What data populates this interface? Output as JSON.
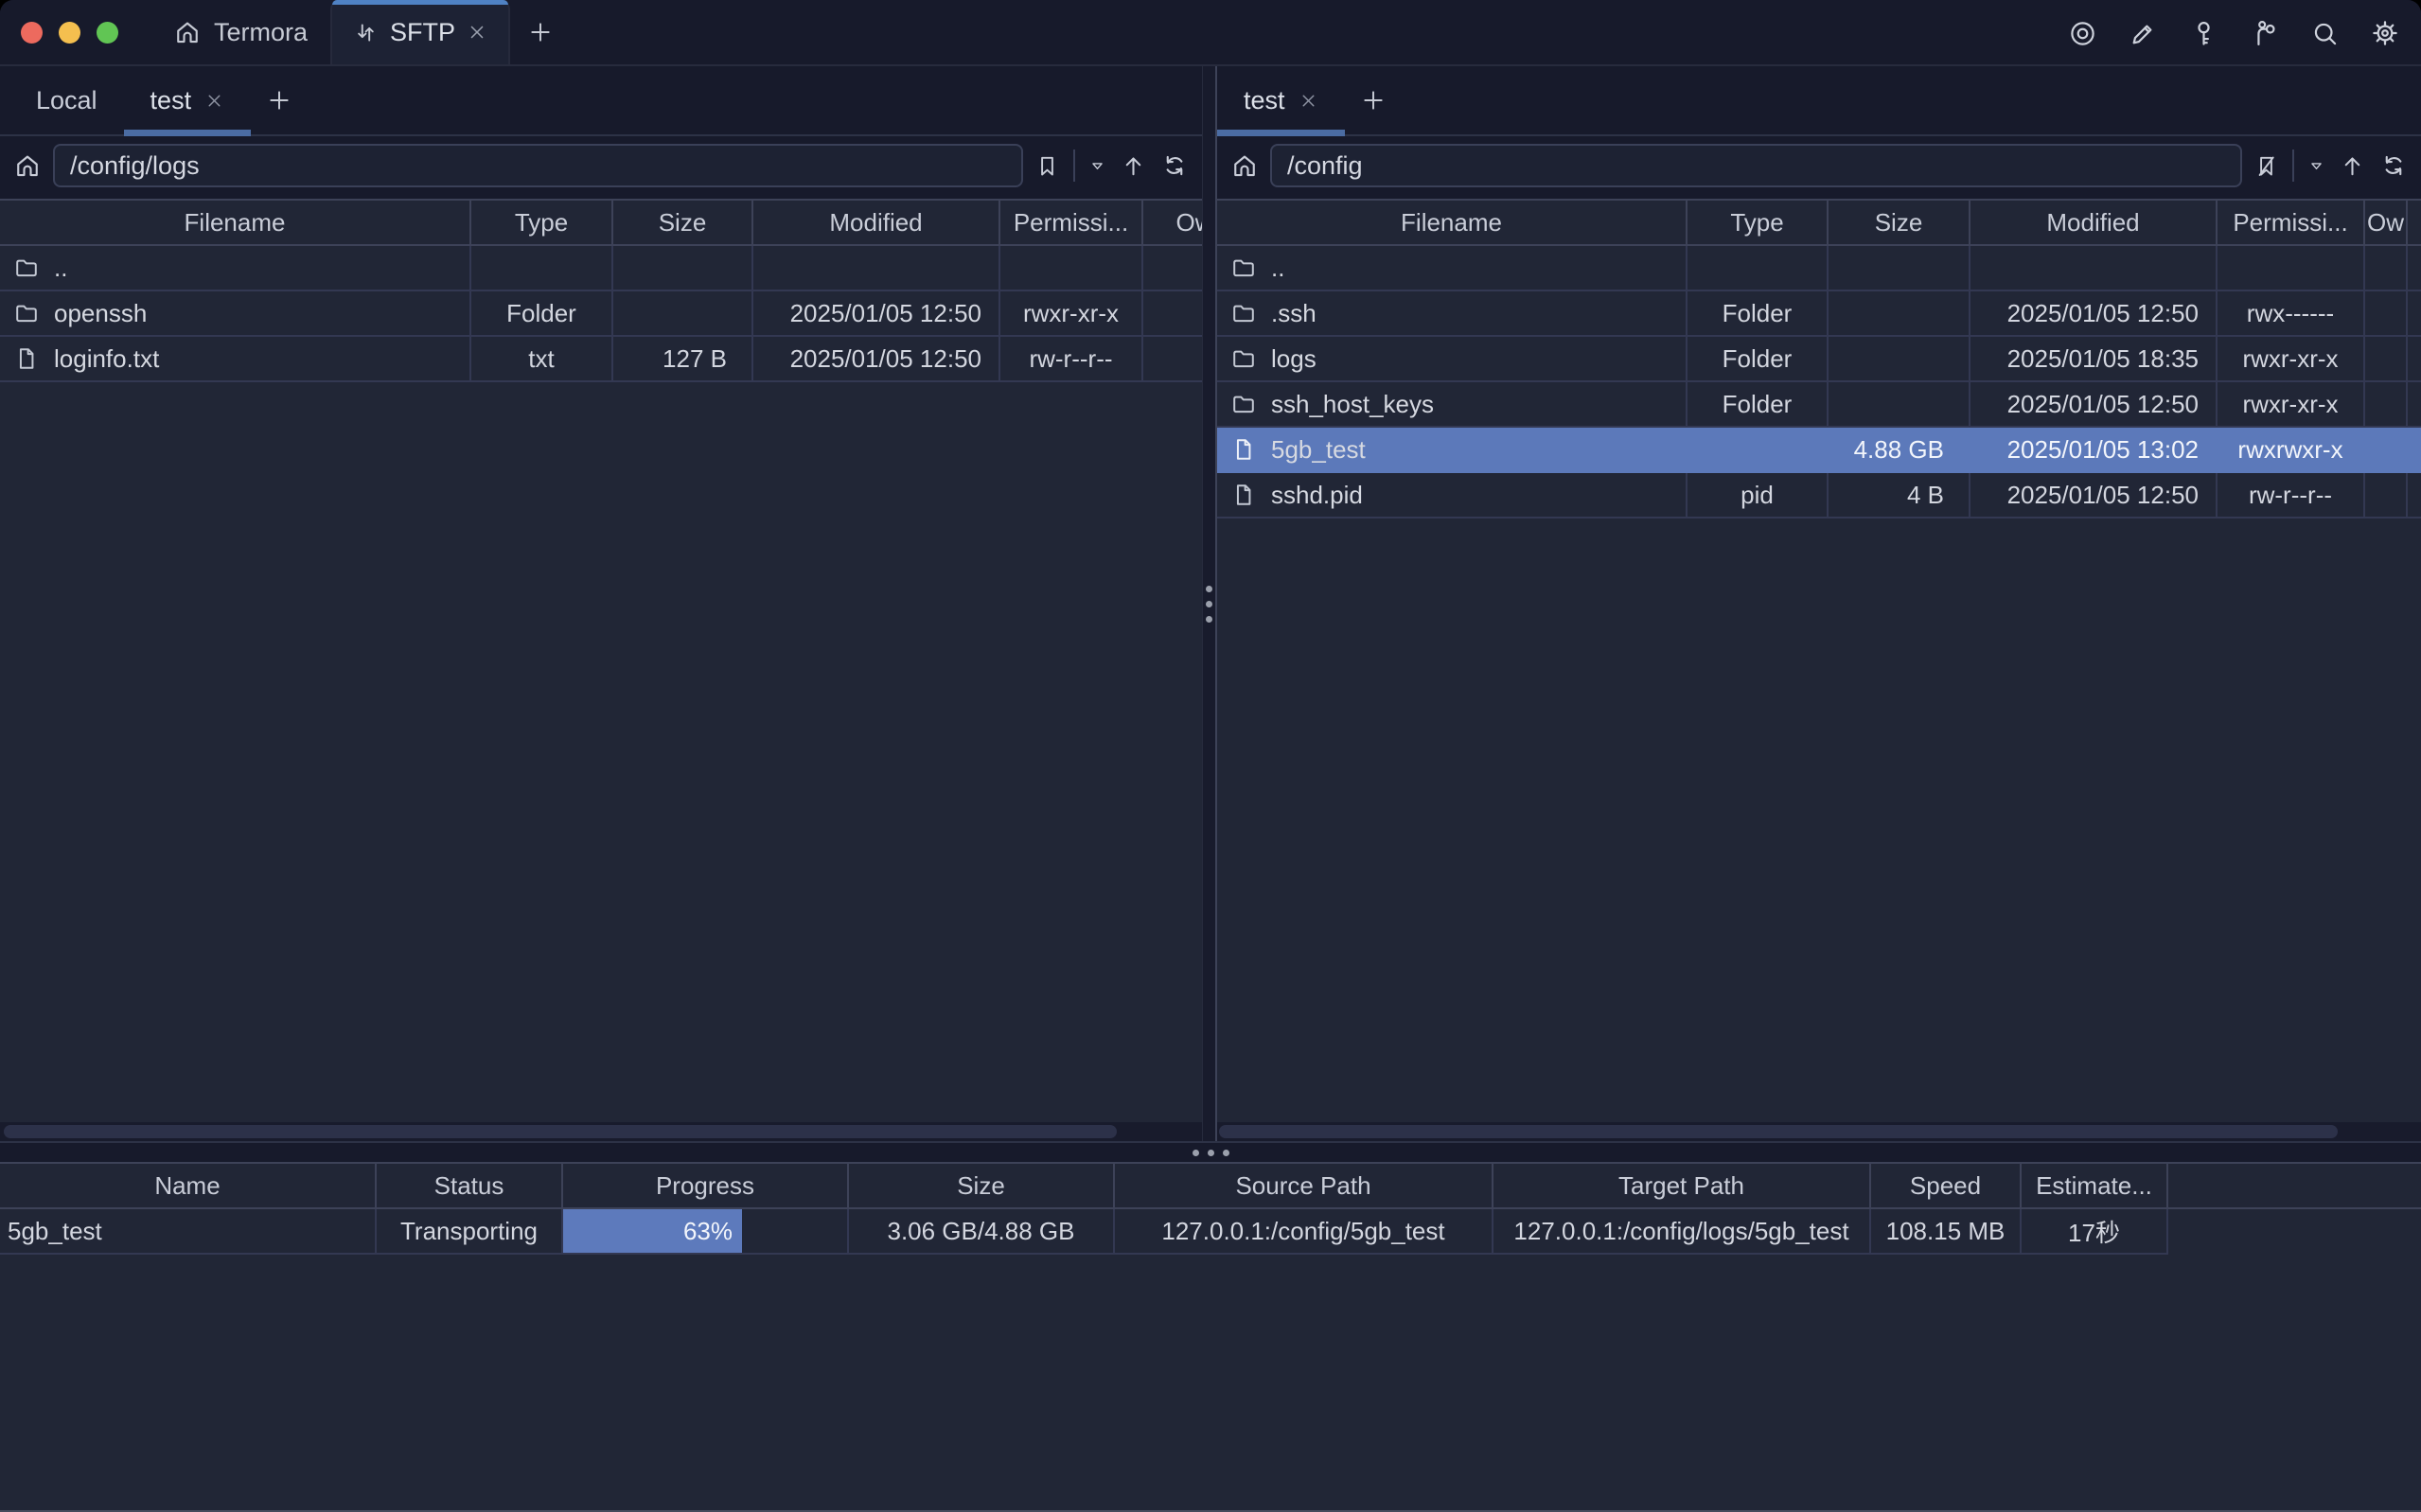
{
  "titlebar": {
    "app_tab_label": "Termora",
    "sftp_tab_label": "SFTP",
    "action_icons": [
      "record",
      "edit",
      "key",
      "keychain-branch",
      "search",
      "settings"
    ]
  },
  "colors": {
    "accent_top": "#4f82c4",
    "tab_underline": "#4b6ca3",
    "selection_blue": "#5c79ba",
    "progress_blue": "#5d7abc"
  },
  "left_pane": {
    "tabs": [
      {
        "label": "Local"
      },
      {
        "label": "test"
      }
    ],
    "active_tab": "test",
    "path": "/config/logs",
    "columns": [
      "Filename",
      "Type",
      "Size",
      "Modified",
      "Permissi...",
      "Ow"
    ],
    "rows": [
      {
        "name": "..",
        "icon": "folder",
        "type": "",
        "size": "",
        "modified": "",
        "permissions": ""
      },
      {
        "name": "openssh",
        "icon": "folder",
        "type": "Folder",
        "size": "",
        "modified": "2025/01/05 12:50",
        "permissions": "rwxr-xr-x"
      },
      {
        "name": "loginfo.txt",
        "icon": "file",
        "type": "txt",
        "size": "127 B",
        "modified": "2025/01/05 12:50",
        "permissions": "rw-r--r--"
      }
    ]
  },
  "right_pane": {
    "tabs": [
      {
        "label": "test"
      }
    ],
    "active_tab": "test",
    "path": "/config",
    "columns": [
      "Filename",
      "Type",
      "Size",
      "Modified",
      "Permissi...",
      "Ow"
    ],
    "rows": [
      {
        "name": "..",
        "icon": "folder",
        "type": "",
        "size": "",
        "modified": "",
        "permissions": ""
      },
      {
        "name": ".ssh",
        "icon": "folder",
        "type": "Folder",
        "size": "",
        "modified": "2025/01/05 12:50",
        "permissions": "rwx------"
      },
      {
        "name": "logs",
        "icon": "folder",
        "type": "Folder",
        "size": "",
        "modified": "2025/01/05 18:35",
        "permissions": "rwxr-xr-x"
      },
      {
        "name": "ssh_host_keys",
        "icon": "folder",
        "type": "Folder",
        "size": "",
        "modified": "2025/01/05 12:50",
        "permissions": "rwxr-xr-x"
      },
      {
        "name": "5gb_test",
        "icon": "file",
        "type": "",
        "size": "4.88 GB",
        "modified": "2025/01/05 13:02",
        "permissions": "rwxrwxr-x",
        "selected": true
      },
      {
        "name": "sshd.pid",
        "icon": "file",
        "type": "pid",
        "size": "4 B",
        "modified": "2025/01/05 12:50",
        "permissions": "rw-r--r--"
      }
    ]
  },
  "transfers": {
    "columns": [
      "Name",
      "Status",
      "Progress",
      "Size",
      "Source Path",
      "Target Path",
      "Speed",
      "Estimate..."
    ],
    "rows": [
      {
        "name": "5gb_test",
        "status": "Transporting",
        "progress_label": "63%",
        "progress_pct": 63,
        "size": "3.06 GB/4.88 GB",
        "source_path": "127.0.0.1:/config/5gb_test",
        "target_path": "127.0.0.1:/config/logs/5gb_test",
        "speed": "108.15 MB",
        "estimate": "17秒"
      }
    ]
  }
}
